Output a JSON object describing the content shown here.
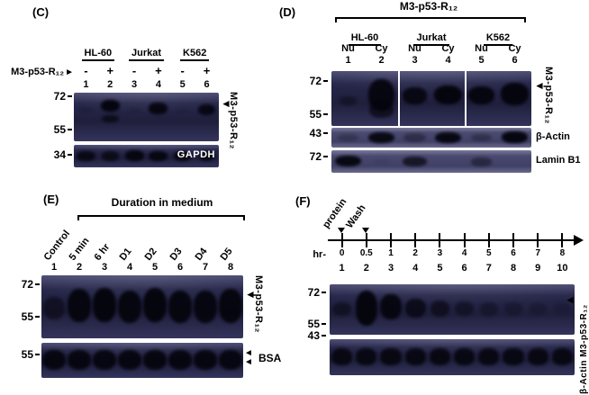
{
  "figure": {
    "panelC": {
      "label": "(C)",
      "cell_lines": [
        "HL-60",
        "Jurkat",
        "K562"
      ],
      "treatment_label": "M3-p53-R₁₂",
      "treatment_arrow": "►",
      "signs": [
        "-",
        "+",
        "-",
        "+",
        "-",
        "+"
      ],
      "lanes": [
        "1",
        "2",
        "3",
        "4",
        "5",
        "6"
      ],
      "mw": {
        "m72": "72",
        "m55": "55",
        "m34": "34"
      },
      "band_arrow": "◄",
      "target_label": "M3-p53-R₁₂",
      "loading_label": "GAPDH"
    },
    "panelD": {
      "label": "(D)",
      "title": "M3-p53-R₁₂",
      "cell_lines": [
        "HL-60",
        "Jurkat",
        "K562"
      ],
      "fractions": [
        "Nu",
        "Cy",
        "Nu",
        "Cy",
        "Nu",
        "Cy"
      ],
      "lanes": [
        "1",
        "2",
        "3",
        "4",
        "5",
        "6"
      ],
      "mw": {
        "m72a": "72",
        "m55": "55",
        "m43": "43",
        "m72b": "72"
      },
      "band_arrow": "◄",
      "target_label": "M3-p53-R₁₂",
      "actin_label": "β-Actin",
      "lamin_label": "Lamin B1"
    },
    "panelE": {
      "label": "(E)",
      "title": "Duration in medium",
      "lane_labels": [
        "Control",
        "5 min",
        "6 hr",
        "D1",
        "D2",
        "D3",
        "D4",
        "D5"
      ],
      "lanes": [
        "1",
        "2",
        "3",
        "4",
        "5",
        "6",
        "7",
        "8"
      ],
      "mw": {
        "m72": "72",
        "m55a": "55",
        "m55b": "55"
      },
      "band_arrow": "◄",
      "target_label": "M3-p53-R₁₂",
      "bsa_label": "BSA"
    },
    "panelF": {
      "label": "(F)",
      "protein_label": "protein",
      "wash_label": "Wash",
      "hr_label": "hr-",
      "times": [
        "0",
        "0.5",
        "1",
        "2",
        "3",
        "4",
        "5",
        "6",
        "7",
        "8"
      ],
      "lanes": [
        "1",
        "2",
        "3",
        "4",
        "5",
        "6",
        "7",
        "8",
        "9",
        "10"
      ],
      "mw": {
        "m72": "72",
        "m55": "55",
        "m43": "43"
      },
      "band_arrow": "◄",
      "right_label": "β-Actin M3-p53-R₁₂"
    }
  },
  "blots": {
    "c1": {
      "lanes": 6,
      "bands": [
        [
          1,
          14,
          24,
          13,
          0.95
        ],
        [
          1,
          46,
          16,
          12,
          0.7
        ],
        [
          3,
          20,
          24,
          13,
          0.9
        ],
        [
          5,
          24,
          22,
          12,
          0.85
        ],
        [
          0,
          30,
          10,
          9,
          0.12
        ],
        [
          2,
          32,
          8,
          9,
          0.1
        ],
        [
          4,
          32,
          8,
          9,
          0.1
        ]
      ]
    },
    "c2": {
      "lanes": 6,
      "bands": [
        [
          0,
          26,
          46,
          13,
          0.82
        ],
        [
          1,
          28,
          42,
          12,
          0.75
        ],
        [
          2,
          24,
          48,
          13,
          0.9
        ],
        [
          3,
          26,
          46,
          13,
          0.88
        ],
        [
          4,
          26,
          46,
          12,
          0.85
        ],
        [
          5,
          28,
          42,
          11,
          0.8
        ]
      ]
    },
    "d1": {
      "lanes": 6,
      "separators": [
        33.33,
        66.67
      ],
      "bands": [
        [
          0,
          46,
          16,
          9,
          0.4
        ],
        [
          1,
          14,
          58,
          13,
          0.9
        ],
        [
          1,
          56,
          30,
          12,
          0.65
        ],
        [
          2,
          30,
          30,
          12,
          0.85
        ],
        [
          3,
          26,
          34,
          14,
          0.95
        ],
        [
          4,
          28,
          32,
          13,
          0.92
        ],
        [
          5,
          22,
          40,
          14,
          0.95
        ]
      ]
    },
    "d2": {
      "lanes": 6,
      "tone": "light",
      "bands": [
        [
          0,
          30,
          40,
          10,
          0.25
        ],
        [
          1,
          22,
          55,
          13,
          0.9
        ],
        [
          2,
          28,
          45,
          11,
          0.35
        ],
        [
          3,
          22,
          55,
          13,
          0.92
        ],
        [
          4,
          30,
          40,
          10,
          0.3
        ],
        [
          5,
          20,
          58,
          13,
          0.95
        ]
      ]
    },
    "d3": {
      "lanes": 6,
      "tone": "light",
      "bands": [
        [
          0,
          24,
          48,
          13,
          0.92
        ],
        [
          1,
          35,
          25,
          9,
          0.08
        ],
        [
          2,
          28,
          44,
          12,
          0.7
        ],
        [
          4,
          32,
          38,
          10,
          0.42
        ]
      ]
    },
    "e1": {
      "lanes": 8,
      "bands": [
        [
          0,
          34,
          36,
          11,
          0.55
        ],
        [
          1,
          22,
          52,
          12,
          0.92
        ],
        [
          2,
          20,
          54,
          12,
          0.95
        ],
        [
          3,
          24,
          52,
          12,
          0.92
        ],
        [
          4,
          20,
          54,
          12,
          0.95
        ],
        [
          5,
          24,
          52,
          12,
          0.92
        ],
        [
          6,
          24,
          52,
          12,
          0.9
        ],
        [
          7,
          22,
          54,
          12,
          0.93
        ]
      ]
    },
    "e2": {
      "lanes": 8,
      "bands": [
        [
          0,
          20,
          56,
          12,
          0.9
        ],
        [
          1,
          20,
          56,
          12,
          0.9
        ],
        [
          2,
          20,
          56,
          12,
          0.9
        ],
        [
          3,
          20,
          56,
          12,
          0.9
        ],
        [
          4,
          20,
          56,
          12,
          0.9
        ],
        [
          5,
          20,
          56,
          12,
          0.9
        ],
        [
          6,
          20,
          56,
          12,
          0.9
        ],
        [
          7,
          20,
          56,
          12,
          0.9
        ]
      ]
    },
    "f1": {
      "lanes": 10,
      "bands": [
        [
          0,
          36,
          26,
          8,
          0.5
        ],
        [
          1,
          12,
          70,
          9,
          0.95
        ],
        [
          2,
          20,
          50,
          8.5,
          0.9
        ],
        [
          3,
          28,
          38,
          8.5,
          0.75
        ],
        [
          4,
          32,
          32,
          8,
          0.6
        ],
        [
          5,
          34,
          28,
          8,
          0.45
        ],
        [
          6,
          36,
          26,
          7.5,
          0.35
        ],
        [
          7,
          36,
          24,
          7.5,
          0.28
        ],
        [
          8,
          38,
          22,
          7,
          0.22
        ],
        [
          9,
          38,
          20,
          7,
          0.17
        ]
      ]
    },
    "f2": {
      "lanes": 10,
      "bands": [
        [
          0,
          26,
          46,
          8.5,
          0.85
        ],
        [
          1,
          26,
          46,
          8.5,
          0.85
        ],
        [
          2,
          26,
          46,
          8.5,
          0.85
        ],
        [
          3,
          26,
          46,
          8.5,
          0.85
        ],
        [
          4,
          26,
          46,
          8.5,
          0.85
        ],
        [
          5,
          26,
          46,
          8.5,
          0.85
        ],
        [
          6,
          26,
          46,
          8.5,
          0.85
        ],
        [
          7,
          26,
          46,
          8.5,
          0.85
        ],
        [
          8,
          26,
          46,
          8.5,
          0.85
        ],
        [
          9,
          26,
          46,
          8.5,
          0.85
        ]
      ]
    }
  }
}
